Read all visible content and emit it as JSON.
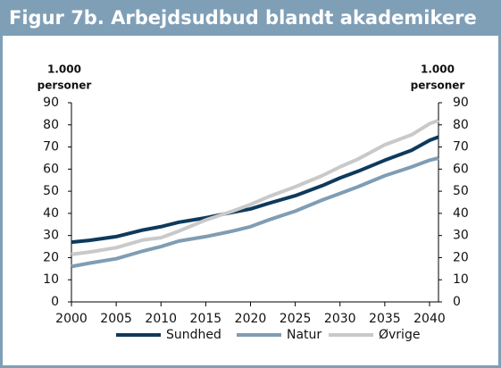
{
  "chart_data": {
    "type": "line",
    "title": "Figur 7b. Arbejdsudbud blandt akademikere",
    "ylabel": [
      "1.000",
      "personer"
    ],
    "y2label": [
      "1.000",
      "personer"
    ],
    "x": [
      2000,
      2002,
      2005,
      2008,
      2010,
      2012,
      2015,
      2018,
      2020,
      2022,
      2025,
      2028,
      2030,
      2032,
      2035,
      2038,
      2040,
      2041
    ],
    "series": [
      {
        "name": "Sundhed",
        "color": "#0e3a5c",
        "values": [
          27,
          27.8,
          29.5,
          32.5,
          34,
          36,
          38,
          40.5,
          42,
          44.5,
          48,
          52.5,
          56,
          59,
          64,
          68.5,
          73,
          74.5
        ]
      },
      {
        "name": "Natur",
        "color": "#7f9db4",
        "values": [
          16,
          17.5,
          19.5,
          23,
          25,
          27.5,
          29.5,
          32,
          34,
          37,
          41,
          46,
          49,
          52,
          57,
          61,
          64,
          65
        ]
      },
      {
        "name": "Øvrige",
        "color": "#c9c9c9",
        "values": [
          21.5,
          22.5,
          24.5,
          28,
          29,
          32,
          37,
          41,
          44,
          47.5,
          52,
          57,
          61,
          64.5,
          71,
          75.5,
          80.5,
          82
        ]
      }
    ],
    "xlim": [
      2000,
      2041
    ],
    "xticks": [
      2000,
      2005,
      2010,
      2015,
      2020,
      2025,
      2030,
      2035,
      2040
    ],
    "ylim": [
      0,
      90
    ],
    "yticks": [
      0,
      10,
      20,
      30,
      40,
      50,
      60,
      70,
      80,
      90
    ],
    "y2lim": [
      0,
      90
    ],
    "y2ticks": [
      0,
      10,
      20,
      30,
      40,
      50,
      60,
      70,
      80,
      90
    ],
    "legend": "bottom"
  }
}
